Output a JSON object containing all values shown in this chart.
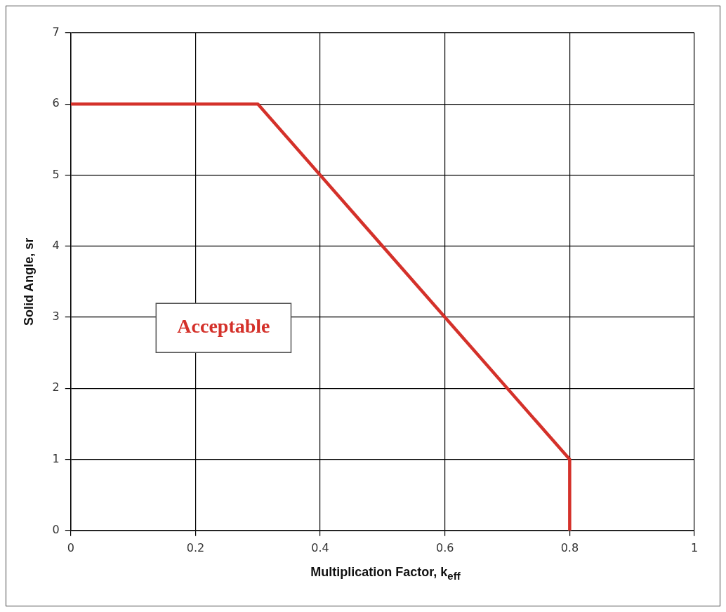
{
  "chart_data": {
    "type": "line",
    "x": [
      0,
      0.3,
      0.8,
      0.8
    ],
    "series": [
      {
        "color": "#d4312a",
        "values": [
          6,
          6,
          1,
          0
        ]
      }
    ],
    "xlim": [
      0,
      1
    ],
    "xticks": [
      0,
      0.2,
      0.4,
      0.6,
      0.8,
      1
    ],
    "ylim": [
      0,
      7
    ],
    "yticks": [
      0,
      1,
      2,
      3,
      4,
      5,
      6,
      7
    ],
    "xlabel": "Multiplication Factor, k$_{eff}$",
    "ylabel": "Solid Angle, sr",
    "annotations": [
      "Acceptable"
    ],
    "grid": true,
    "marker": "none",
    "line_style": "solid",
    "legend": false
  }
}
